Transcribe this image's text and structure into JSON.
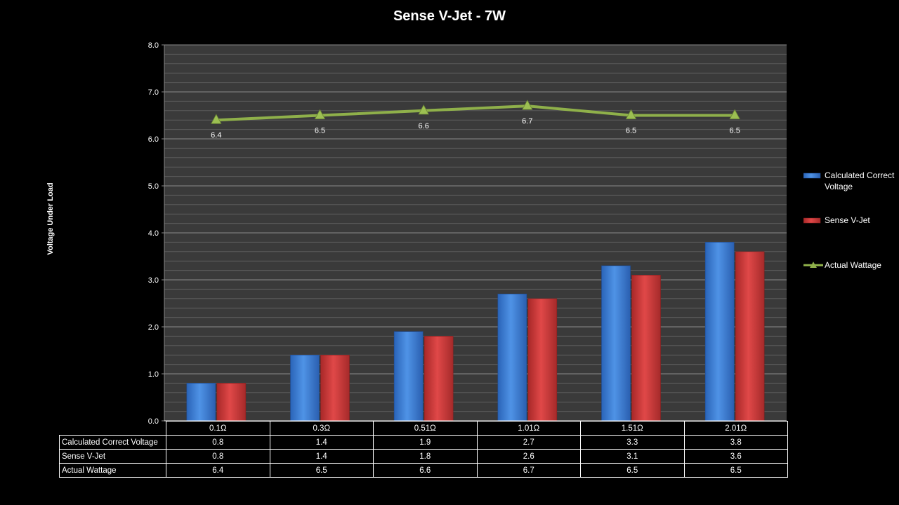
{
  "chart_data": {
    "type": "bar",
    "title": "Sense V-Jet - 7W",
    "ylabel": "Voltage Under Load",
    "xlabel": "",
    "ylim": [
      0,
      8
    ],
    "yticks": [
      "0.0",
      "1.0",
      "2.0",
      "3.0",
      "4.0",
      "5.0",
      "6.0",
      "7.0",
      "8.0"
    ],
    "categories": [
      "0.1Ω",
      "0.3Ω",
      "0.51Ω",
      "1.01Ω",
      "1.51Ω",
      "2.01Ω"
    ],
    "grid": true,
    "legend_position": "right",
    "series": [
      {
        "name": "Calculated Correct Voltage",
        "type": "bar",
        "color": "#3b7dd8",
        "values": [
          0.8,
          1.4,
          1.9,
          2.7,
          3.3,
          3.8
        ]
      },
      {
        "name": "Sense V-Jet",
        "type": "bar",
        "color": "#d63b3b",
        "values": [
          0.8,
          1.4,
          1.8,
          2.6,
          3.1,
          3.6
        ]
      },
      {
        "name": "Actual Wattage",
        "type": "line",
        "color": "#8fb04a",
        "values": [
          6.4,
          6.5,
          6.6,
          6.7,
          6.5,
          6.5
        ]
      }
    ],
    "data_labels": {
      "Actual Wattage": [
        "6.4",
        "6.5",
        "6.6",
        "6.7",
        "6.5",
        "6.5"
      ]
    },
    "table": {
      "rows": [
        {
          "label": "Calculated Correct Voltage",
          "values": [
            "0.8",
            "1.4",
            "1.9",
            "2.7",
            "3.3",
            "3.8"
          ]
        },
        {
          "label": "Sense V-Jet",
          "values": [
            "0.8",
            "1.4",
            "1.8",
            "2.6",
            "3.1",
            "3.6"
          ]
        },
        {
          "label": "Actual Wattage",
          "values": [
            "6.4",
            "6.5",
            "6.6",
            "6.7",
            "6.5",
            "6.5"
          ]
        }
      ]
    }
  }
}
